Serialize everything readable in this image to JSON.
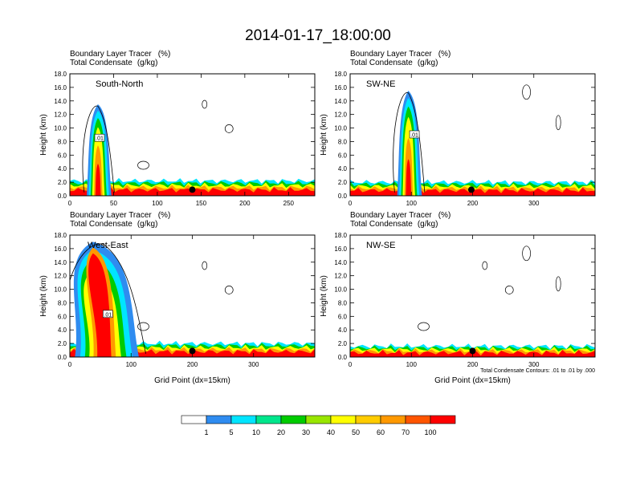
{
  "chart_data": {
    "type": "heatmap",
    "title": "2014-01-17_18:00:00",
    "legend": {
      "placement": "bottom-center",
      "colors": [
        "#ffffff",
        "#2f8cf0",
        "#00e5ff",
        "#00e68c",
        "#00cc00",
        "#99e600",
        "#ffff00",
        "#ffcc00",
        "#ff9900",
        "#ff5500",
        "#ff0000"
      ],
      "labels": [
        "1",
        "5",
        "10",
        "20",
        "30",
        "40",
        "50",
        "60",
        "70",
        "100"
      ]
    },
    "panels": [
      {
        "name": "South-North",
        "label_left": "Boundary Layer Tracer",
        "label_left_units": "(%)",
        "label_left2": "Total Condensate",
        "label_left2_units": "(g/kg)",
        "xlabel": "",
        "ylabel": "Height (km)",
        "xlim": [
          0,
          280
        ],
        "ylim": [
          0,
          18
        ],
        "xticks": [
          "0",
          "50",
          "100",
          "150",
          "200",
          "250"
        ],
        "xtick_values": [
          0,
          50,
          100,
          150,
          200,
          250
        ],
        "yticks": [
          "0.0",
          "2.0",
          "4.0",
          "6.0",
          "8.0",
          "10.0",
          "12.0",
          "14.0",
          "16.0",
          "18.0"
        ],
        "contour_label": ".01",
        "contour_label_x": 34,
        "contour_label_y": 8.5,
        "marker_x": 140,
        "plume_x": 32,
        "plume_top": 13.5,
        "bl_top": 2.2
      },
      {
        "name": "SW-NE",
        "label_left": "Boundary Layer Tracer",
        "label_left_units": "(%)",
        "label_left2": "Total Condensate",
        "label_left2_units": "(g/kg)",
        "xlabel": "",
        "ylabel": "Height (km)",
        "xlim": [
          0,
          400
        ],
        "ylim": [
          0,
          18
        ],
        "xticks": [
          "0",
          "100",
          "200",
          "300"
        ],
        "xtick_values": [
          0,
          100,
          200,
          300
        ],
        "yticks": [
          "0.0",
          "2.0",
          "4.0",
          "6.0",
          "8.0",
          "10.0",
          "12.0",
          "14.0",
          "16.0",
          "18.0"
        ],
        "contour_label": ".01",
        "contour_label_x": 105,
        "contour_label_y": 9.0,
        "marker_x": 198,
        "plume_x": 95,
        "plume_top": 15.5,
        "bl_top": 2.0
      },
      {
        "name": "West-East",
        "label_left": "Boundary Layer Tracer",
        "label_left_units": "(%)",
        "label_left2": "Total Condensate",
        "label_left2_units": "(g/kg)",
        "xlabel": "Grid Point (dx=15km)",
        "ylabel": "Height (km)",
        "xlim": [
          0,
          400
        ],
        "ylim": [
          0,
          18
        ],
        "xticks": [
          "0",
          "100",
          "200",
          "300"
        ],
        "xtick_values": [
          0,
          100,
          200,
          300
        ],
        "yticks": [
          "0.0",
          "2.0",
          "4.0",
          "6.0",
          "8.0",
          "10.0",
          "12.0",
          "14.0",
          "16.0",
          "18.0"
        ],
        "contour_label": ".01",
        "contour_label_x": 62,
        "contour_label_y": 6.3,
        "marker_x": 200,
        "plume_x": 55,
        "plume_top": 17.0,
        "bl_top": 2.0
      },
      {
        "name": "NW-SE",
        "label_left": "Boundary Layer Tracer",
        "label_left_units": "(%)",
        "label_left2": "Total Condensate",
        "label_left2_units": "(g/kg)",
        "xlabel": "Grid Point (dx=15km)",
        "ylabel": "Height (km)",
        "xlim": [
          0,
          400
        ],
        "ylim": [
          0,
          18
        ],
        "xticks": [
          "0",
          "100",
          "200",
          "300"
        ],
        "xtick_values": [
          0,
          100,
          200,
          300
        ],
        "yticks": [
          "0.0",
          "2.0",
          "4.0",
          "6.0",
          "8.0",
          "10.0",
          "12.0",
          "14.0",
          "16.0",
          "18.0"
        ],
        "contour_label": "",
        "marker_x": 200,
        "plume_x": 0,
        "plume_top": 0,
        "bl_top": 1.6,
        "footnote": "Total Condensate Contours: .01 to .01 by .000"
      }
    ]
  }
}
